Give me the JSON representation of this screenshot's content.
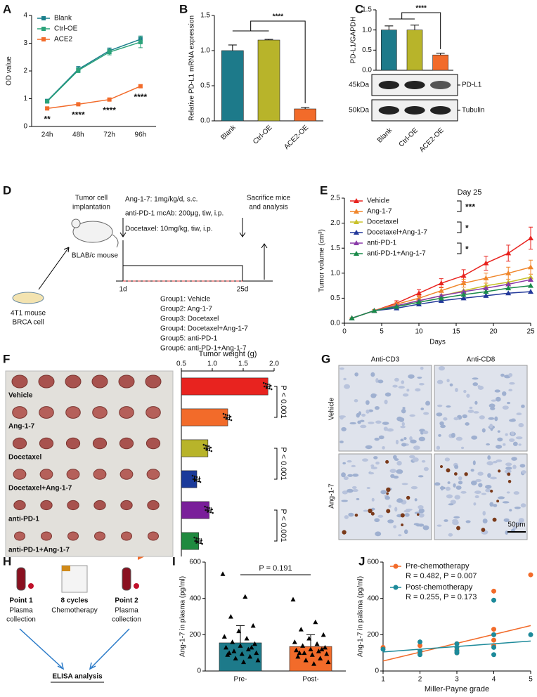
{
  "chart_data": [
    {
      "panel": "A",
      "type": "line",
      "marker": "square",
      "legend": "upper left",
      "ylabel": "OD value",
      "categories": [
        "24h",
        "48h",
        "72h",
        "96h"
      ],
      "ylim": [
        0,
        4
      ],
      "yticks": [
        0,
        1,
        2,
        3,
        4
      ],
      "series": [
        {
          "name": "Blank",
          "color": "#1a7f8c",
          "values": [
            0.92,
            2.06,
            2.73,
            3.14
          ],
          "errors": [
            0.05,
            0.1,
            0.1,
            0.12
          ]
        },
        {
          "name": "Ctrl-OE",
          "color": "#2ca37a",
          "values": [
            0.9,
            2.02,
            2.68,
            3.04
          ],
          "errors": [
            0.04,
            0.08,
            0.1,
            0.2
          ]
        },
        {
          "name": "ACE2",
          "color": "#f26b2a",
          "values": [
            0.65,
            0.8,
            0.97,
            1.45
          ],
          "errors": [
            0.03,
            0.03,
            0.03,
            0.05
          ]
        }
      ],
      "annotations": [
        "**",
        "****",
        "****",
        "****"
      ]
    },
    {
      "panel": "B",
      "type": "bar",
      "ylabel": "Relative PD-L1 mRNA expression",
      "xlabel_rotation": 45,
      "categories": [
        "Blank",
        "Ctrl-OE",
        "ACE2-OE"
      ],
      "values": [
        1.0,
        1.15,
        0.17
      ],
      "errors": [
        0.08,
        0.01,
        0.02
      ],
      "colors": [
        "#1d7a8a",
        "#b8b42a",
        "#f26b2a"
      ],
      "ylim": [
        0,
        1.5
      ],
      "yticks": [
        {
          "value": 0,
          "label": "0.0"
        },
        0.5,
        {
          "value": 1,
          "label": "1.0"
        },
        1.5
      ],
      "annotations": [
        "****"
      ]
    },
    {
      "panel": "C",
      "type": "bar",
      "ylabel": "PD-L1/GAPDH",
      "xlabel_rotation": 45,
      "categories": [
        "Blank",
        "Ctrl-OE",
        "ACE2-OE"
      ],
      "values": [
        1.0,
        1.0,
        0.38
      ],
      "errors": [
        0.1,
        0.12,
        0.04
      ],
      "colors": [
        "#1d7a8a",
        "#b8b42a",
        "#f26b2a"
      ],
      "ylim": [
        0,
        1.5
      ],
      "yticks": [
        {
          "value": 0,
          "label": "0.0"
        },
        0.5,
        {
          "value": 1,
          "label": "1.0"
        },
        1.5
      ],
      "annotations": [
        "****"
      ],
      "blot_labels": [
        "45kDa",
        "PD-L1",
        "50kDa",
        "Tubulin"
      ]
    },
    {
      "panel": "E",
      "type": "line",
      "marker": "triangle",
      "legend": "upper left",
      "xlabel": "Days",
      "ylabel": "Tumor volume (cm³)",
      "x": [
        1,
        4,
        7,
        10,
        13,
        16,
        19,
        22,
        25
      ],
      "xlim": [
        0,
        25
      ],
      "xticks": [
        0,
        5,
        10,
        15,
        20,
        25
      ],
      "ylim": [
        0,
        2.5
      ],
      "yticks": [
        {
          "value": 0,
          "label": "0.0"
        },
        0.5,
        {
          "value": 1,
          "label": "1.0"
        },
        1.5,
        {
          "value": 2,
          "label": "2.0"
        },
        2.5
      ],
      "series": [
        {
          "name": "Vehicle",
          "color": "#e8231f",
          "values": [
            0.1,
            0.25,
            0.4,
            0.6,
            0.8,
            0.95,
            1.2,
            1.4,
            1.7
          ],
          "errors": [
            0.01,
            0.02,
            0.05,
            0.07,
            0.09,
            0.12,
            0.14,
            0.16,
            0.22
          ]
        },
        {
          "name": "Ang-1-7",
          "color": "#f0862a",
          "values": [
            0.1,
            0.25,
            0.38,
            0.5,
            0.65,
            0.8,
            0.9,
            1.0,
            1.12
          ],
          "errors": [
            0.01,
            0.02,
            0.04,
            0.05,
            0.07,
            0.08,
            0.1,
            0.12,
            0.14
          ]
        },
        {
          "name": "Docetaxel",
          "color": "#c9c12a",
          "values": [
            0.1,
            0.25,
            0.35,
            0.45,
            0.55,
            0.65,
            0.75,
            0.82,
            0.92
          ]
        },
        {
          "name": "Docetaxel+Ang-1-7",
          "color": "#23399a",
          "values": [
            0.1,
            0.25,
            0.3,
            0.38,
            0.45,
            0.5,
            0.55,
            0.6,
            0.63
          ]
        },
        {
          "name": "anti-PD-1",
          "color": "#8a3aa8",
          "values": [
            0.1,
            0.25,
            0.35,
            0.45,
            0.55,
            0.63,
            0.7,
            0.78,
            0.87
          ]
        },
        {
          "name": "anti-PD-1+Ang-1-7",
          "color": "#1a8a4a",
          "values": [
            0.1,
            0.25,
            0.33,
            0.42,
            0.5,
            0.57,
            0.63,
            0.7,
            0.75
          ]
        }
      ],
      "annotations": [
        "Day 25",
        "***",
        "*",
        "*"
      ]
    },
    {
      "panel": "F",
      "type": "hbar",
      "xlabel": "Tumor weight (g)",
      "categories": [
        "Vehicle",
        "Ang-1-7",
        "Docetaxel",
        "Docetaxel+Ang-1-7",
        "anti-PD-1",
        "anti-PD-1+Ang-1-7"
      ],
      "values": [
        1.9,
        1.25,
        0.93,
        0.75,
        0.95,
        0.78
      ],
      "errors": [
        0.03,
        0.03,
        0.03,
        0.04,
        0.03,
        0.04
      ],
      "colors": [
        "#e8231f",
        "#f26b2a",
        "#b8b42a",
        "#1b3a9a",
        "#7a1f9a",
        "#1f8a3f"
      ],
      "xlim": [
        0.5,
        2.0
      ],
      "xticks": [
        0.5,
        {
          "value": 1,
          "label": "1.0"
        },
        1.5,
        {
          "value": 2,
          "label": "2.0"
        }
      ],
      "annotations": [
        "P < 0.001",
        "P < 0.001",
        "P < 0.001"
      ]
    },
    {
      "panel": "I",
      "type": "bar",
      "ylabel": "Ang-1-7 in plasma (pg/ml)",
      "categories": [
        "Pre-",
        "Post-"
      ],
      "values": [
        155,
        135
      ],
      "errors": [
        95,
        65
      ],
      "colors": [
        "#1d7a8a",
        "#f26b2a"
      ],
      "ylim": [
        0,
        600
      ],
      "yticks": [
        0,
        200,
        400,
        600
      ],
      "annotations": [
        "P = 0.191"
      ],
      "points": [
        [
          535,
          410,
          300,
          250,
          220,
          190,
          180,
          160,
          150,
          140,
          130,
          120,
          110,
          100,
          95,
          90,
          80,
          70,
          60,
          50,
          100,
          130
        ],
        [
          395,
          270,
          230,
          200,
          180,
          160,
          150,
          140,
          130,
          120,
          115,
          110,
          100,
          95,
          90,
          80,
          70,
          60,
          50,
          40,
          100,
          120
        ]
      ]
    },
    {
      "panel": "J",
      "type": "scatter",
      "legend": "upper left",
      "xlabel": "Miller-Payne grade",
      "ylabel": "Ang-1-7 in palsma (pg/ml)",
      "xlim": [
        1,
        5
      ],
      "xticks": [
        1,
        2,
        3,
        4,
        5
      ],
      "ylim": [
        0,
        600
      ],
      "yticks": [
        0,
        200,
        400,
        600
      ],
      "series": [
        {
          "name": "Pre-chemotherapy",
          "stat": "R = 0.482, P = 0.007",
          "color": "#f26b2a",
          "x": [
            1,
            2,
            2,
            3,
            3,
            3,
            3,
            4,
            4,
            4,
            4,
            4,
            5
          ],
          "y": [
            130,
            140,
            100,
            150,
            130,
            115,
            100,
            440,
            230,
            200,
            170,
            140,
            530
          ],
          "fit_y": [
            55,
            250
          ]
        },
        {
          "name": "Post-chemotherapy",
          "stat": "R = 0.255, P = 0.173",
          "color": "#1d8a9a",
          "x": [
            1,
            2,
            2,
            2,
            3,
            3,
            3,
            3,
            4,
            4,
            4,
            4,
            5
          ],
          "y": [
            120,
            160,
            110,
            90,
            150,
            130,
            110,
            100,
            390,
            200,
            130,
            90,
            200
          ],
          "fit_y": [
            105,
            165
          ]
        }
      ]
    }
  ],
  "diagrams": {
    "D": {
      "panel": "D",
      "implant": [
        "Tumor cell",
        "implantation"
      ],
      "mouse": "BLAB/c mouse",
      "cells": [
        "4T1 mouse",
        "BRCA cell"
      ],
      "treatments": [
        "Ang-1-7: 1mg/kg/d, s.c.",
        "anti-PD-1 mcAb: 200μg, tiw, i.p.",
        "Docetaxel: 10mg/kg, tiw, i.p."
      ],
      "end": [
        "Sacrifice mice",
        "and analysis"
      ],
      "days": [
        "1d",
        "25d"
      ],
      "groups": [
        "Group1: Vehicle",
        "Group2: Ang-1-7",
        "Group3: Docetaxel",
        "Group4: Docetaxel+Ang-1-7",
        "Group5: anti-PD-1",
        "Group6: anti-PD-1+Ang-1-7"
      ]
    },
    "G": {
      "panel": "G",
      "columns": [
        "Anti-CD3",
        "Anti-CD8"
      ],
      "rows": [
        "Vehicle",
        "Ang-1-7"
      ],
      "scale": "50μm"
    },
    "H": {
      "panel": "H",
      "point1": "Point 1",
      "collect1": [
        "Plasma",
        "collection"
      ],
      "cycles": "8 cycles",
      "chemo": "Chemotherapy",
      "point2": "Point 2",
      "collect2": [
        "Plasma",
        "collection"
      ],
      "elisa": "ELISA analysis"
    }
  }
}
